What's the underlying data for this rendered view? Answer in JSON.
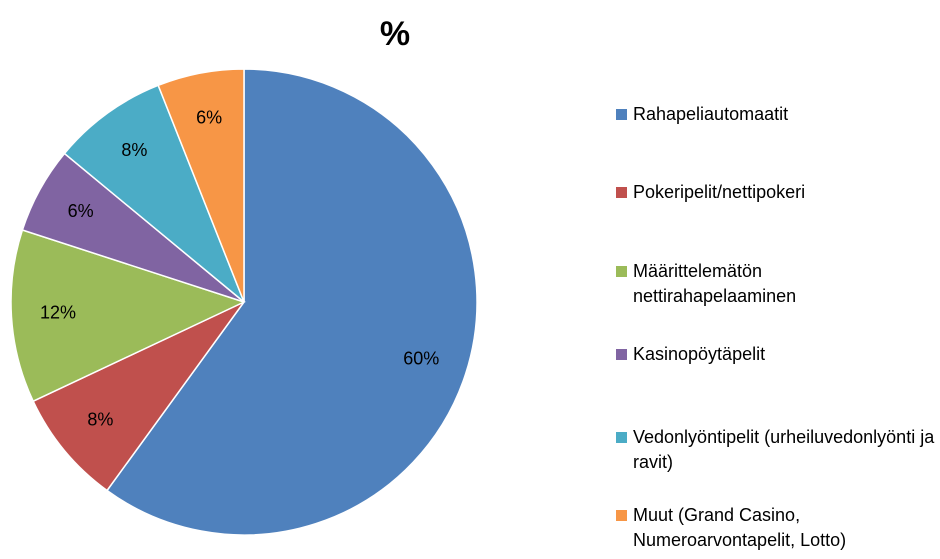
{
  "chart_data": {
    "type": "pie",
    "title": "%",
    "categories": [
      "Rahapeliautomaatit",
      "Pokeripelit/nettipokeri",
      "Määrittelemätön nettirahapelaaminen",
      "Kasinopöytäpelit",
      "Vedonlyöntipelit (urheiluvedonlyönti ja ravit)",
      "Muut (Grand Casino, Numeroarvontapelit, Lotto)"
    ],
    "values": [
      60,
      8,
      12,
      6,
      8,
      6
    ],
    "value_labels": [
      "60%",
      "8%",
      "12%",
      "6%",
      "8%",
      "6%"
    ],
    "colors": [
      "#4f81bd",
      "#c0504d",
      "#9bbb59",
      "#8064a2",
      "#4bacc6",
      "#f79646"
    ],
    "legend": "right"
  }
}
